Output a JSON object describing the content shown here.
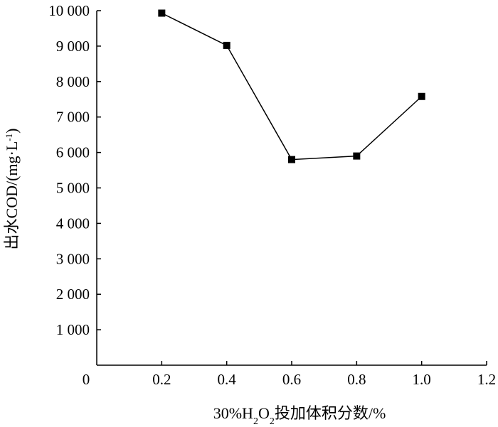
{
  "chart_data": {
    "type": "line",
    "x": [
      0.2,
      0.4,
      0.6,
      0.8,
      1.0
    ],
    "series": [
      {
        "values": [
          9930,
          9020,
          5800,
          5900,
          7580
        ]
      }
    ],
    "xlabel": "30%H2O2投加体积分数/%",
    "xlabel_parts": {
      "prefix": "30%H",
      "sub1": "2",
      "mid": "O",
      "sub2": "2",
      "suffix": "投加体积分数/%"
    },
    "ylabel": "出水COD/(mg·L-1)",
    "ylabel_parts": {
      "main": "出水COD/(mg·L",
      "sup": "-1",
      "suffix": ")"
    },
    "xlim": [
      0,
      1.2
    ],
    "ylim": [
      0,
      10000
    ],
    "x_ticks": [
      0,
      0.2,
      0.4,
      0.6,
      0.8,
      1.0,
      1.2
    ],
    "x_tick_labels": [
      "0",
      "0.2",
      "0.4",
      "0.6",
      "0.8",
      "1.0",
      "1.2"
    ],
    "y_ticks": [
      1000,
      2000,
      3000,
      4000,
      5000,
      6000,
      7000,
      8000,
      9000,
      10000
    ],
    "y_tick_labels": [
      "1 000",
      "2 000",
      "3 000",
      "4 000",
      "5 000",
      "6 000",
      "7 000",
      "8 000",
      "9 000",
      "10 000"
    ],
    "grid": false,
    "marker": "square",
    "color": "#000000"
  }
}
